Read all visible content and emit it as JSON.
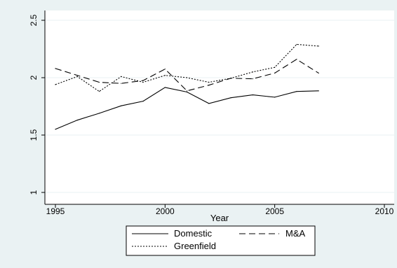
{
  "chart_data": {
    "type": "line",
    "title": "",
    "xlabel": "Year",
    "ylabel": "",
    "xlim": [
      1995,
      2010
    ],
    "ylim": [
      1,
      2.5
    ],
    "xticks": [
      1995,
      2000,
      2005,
      2010
    ],
    "xtick_labels": [
      "1995",
      "2000",
      "2005",
      "2010"
    ],
    "yticks": [
      1,
      1.5,
      2,
      2.5
    ],
    "ytick_labels": [
      "1",
      "1.5",
      "2",
      "2.5"
    ],
    "grid": "horizontal",
    "legend_position": "bottom",
    "x": [
      1995,
      1996,
      1997,
      1998,
      1999,
      2000,
      2001,
      2002,
      2003,
      2004,
      2005,
      2006,
      2007
    ],
    "series": [
      {
        "name": "Domestic",
        "style": "solid",
        "values": [
          1.55,
          1.63,
          1.69,
          1.755,
          1.795,
          1.915,
          1.875,
          1.775,
          1.825,
          1.85,
          1.83,
          1.88,
          1.885
        ]
      },
      {
        "name": "M&A",
        "style": "dashed",
        "values": [
          2.08,
          2.02,
          1.96,
          1.95,
          1.975,
          2.075,
          1.885,
          1.935,
          1.995,
          1.99,
          2.04,
          2.16,
          2.04
        ]
      },
      {
        "name": "Greenfield",
        "style": "dotted",
        "values": [
          1.94,
          2.01,
          1.88,
          2.01,
          1.96,
          2.02,
          2.0,
          1.96,
          1.995,
          2.05,
          2.09,
          2.29,
          2.275
        ]
      }
    ]
  },
  "colors": {
    "background": "#eaf2f3",
    "plot_area": "#ffffff",
    "grid": "#eaf2f3",
    "line": "#000000"
  }
}
